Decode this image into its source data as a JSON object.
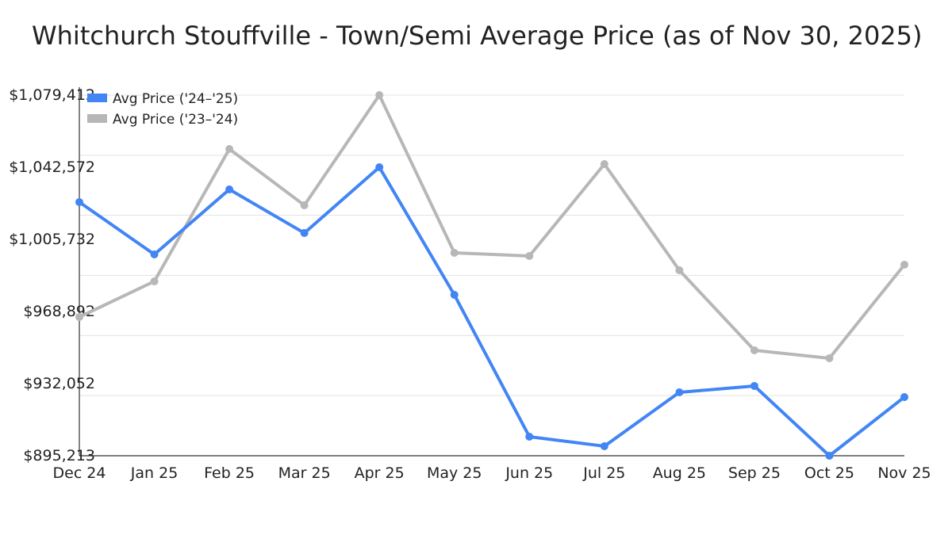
{
  "chart_data": {
    "type": "line",
    "title": "Whitchurch Stouffville - Town/Semi Average Price (as of Nov 30, 2025)",
    "xlabel": "",
    "ylabel": "",
    "categories": [
      "Dec 24",
      "Jan 25",
      "Feb 25",
      "Mar 25",
      "Apr 25",
      "May 25",
      "Jun 25",
      "Jul 25",
      "Aug 25",
      "Sep 25",
      "Oct 25",
      "Nov 25"
    ],
    "ylim": [
      895213,
      1079412
    ],
    "yticks": [
      "$895,213",
      "$932,052",
      "$968,892",
      "$1,005,732",
      "$1,042,572",
      "$1,079,412"
    ],
    "grid": true,
    "legend_position": "top-left",
    "series": [
      {
        "name": "Avg Price ('24–'25)",
        "color": "#4285f4",
        "values": [
          1024760,
          998050,
          1031240,
          1008980,
          1042575,
          977400,
          904940,
          900090,
          927610,
          930850,
          895213,
          925180
        ]
      },
      {
        "name": "Avg Price ('23–'24)",
        "color": "#b7b7b7",
        "values": [
          966070,
          984280,
          1051890,
          1023150,
          1079412,
          998860,
          997240,
          1044190,
          989950,
          949070,
          945020,
          992790
        ]
      }
    ]
  }
}
